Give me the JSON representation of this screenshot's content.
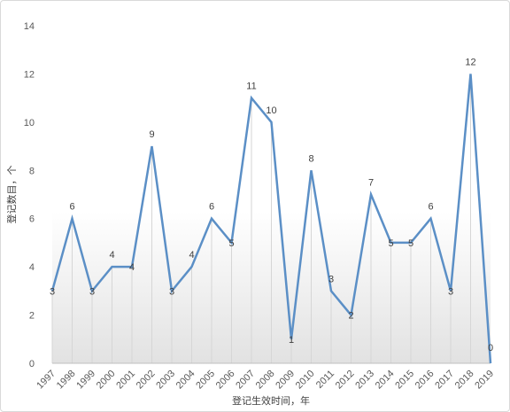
{
  "chart_data": {
    "type": "line",
    "title": "",
    "xlabel": "登记生效时间，年",
    "ylabel": "登记数目，个",
    "x": [
      "1997",
      "1998",
      "1999",
      "2000",
      "2001",
      "2002",
      "2003",
      "2004",
      "2005",
      "2006",
      "2007",
      "2008",
      "2009",
      "2010",
      "2011",
      "2012",
      "2013",
      "2014",
      "2015",
      "2016",
      "2017",
      "2018",
      "2019"
    ],
    "series": [
      {
        "values": [
          3,
          6,
          3,
          4,
          4,
          9,
          3,
          4,
          6,
          5,
          11,
          10,
          1,
          8,
          3,
          2,
          7,
          5,
          5,
          6,
          3,
          12,
          0
        ]
      }
    ],
    "ylim": [
      0,
      14
    ],
    "yticks": [
      0,
      2,
      4,
      6,
      8,
      10,
      12,
      14
    ],
    "grid": false,
    "data_labels": true,
    "drop_lines": true,
    "line_color": "#5b8fc6",
    "drop_line_color": "#d6d6d6",
    "fill_gradient_color": "#e2e2e2"
  }
}
